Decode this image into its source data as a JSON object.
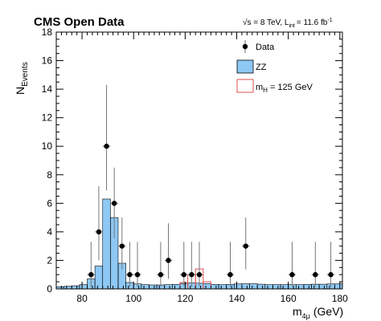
{
  "chart_data": {
    "type": "histogram",
    "title": "CMS Open Data",
    "energy_label": "√s = 8 TeV, L",
    "energy_sub": "int",
    "energy_rest": "= 11.6 fb",
    "energy_sup": "-1",
    "xlabel": "m",
    "xlabel_sub": "4μ",
    "xlabel_unit": "(GeV)",
    "ylabel": "N",
    "ylabel_sub": "Events",
    "xlim": [
      70,
      181
    ],
    "ylim": [
      0,
      18
    ],
    "x_ticks": [
      80,
      100,
      120,
      140,
      160,
      180
    ],
    "y_ticks": [
      0,
      2,
      4,
      6,
      8,
      10,
      12,
      14,
      16,
      18
    ],
    "colors": {
      "zz_fill": "#8ec8f4",
      "signal_line": "#e05050",
      "data": "#000000"
    },
    "legend": {
      "data": "Data",
      "zz": "ZZ",
      "signal": "m",
      "signal_sub": "H",
      "signal_rest": "= 125 GeV"
    },
    "bin_width": 3,
    "zz_series": {
      "name": "ZZ",
      "bin_start": [
        70,
        73,
        76,
        79,
        82,
        85,
        88,
        91,
        94,
        97,
        100,
        103,
        106,
        109,
        112,
        115,
        118,
        121,
        124,
        127,
        130,
        133,
        136,
        139,
        142,
        145,
        148,
        151,
        154,
        157,
        160,
        163,
        166,
        169,
        172,
        175,
        178
      ],
      "values": [
        0.15,
        0.18,
        0.22,
        0.3,
        0.7,
        1.6,
        6.3,
        5.0,
        1.8,
        0.45,
        0.35,
        0.3,
        0.28,
        0.28,
        0.3,
        0.32,
        0.38,
        0.42,
        0.4,
        0.38,
        0.32,
        0.3,
        0.32,
        0.35,
        0.36,
        0.36,
        0.33,
        0.3,
        0.3,
        0.3,
        0.3,
        0.3,
        0.32,
        0.33,
        0.33,
        0.35,
        0.35
      ]
    },
    "signal_series": {
      "name": "m_H = 125 GeV",
      "bin_start": [
        118,
        121,
        124,
        127
      ],
      "values": [
        0.45,
        1.0,
        1.4,
        0.5
      ]
    },
    "data_series": {
      "name": "Data",
      "x": [
        83.5,
        86.5,
        89.5,
        92.5,
        95.5,
        98.5,
        101.5,
        110.5,
        113.5,
        119.5,
        122.5,
        125.5,
        137.5,
        143.5,
        161.5,
        170.5,
        176.5
      ],
      "y": [
        1,
        4,
        10,
        6,
        3,
        1,
        1,
        1,
        2,
        1,
        1,
        1,
        1,
        3,
        1,
        1,
        1
      ],
      "err_up": [
        2.3,
        3.2,
        4.3,
        2.5,
        2.0,
        2.3,
        2.3,
        2.3,
        2.6,
        2.3,
        2.3,
        2.3,
        2.3,
        2.0,
        2.3,
        2.3,
        2.3
      ],
      "err_down": [
        0.83,
        2.0,
        3.1,
        2.45,
        1.63,
        0.83,
        0.83,
        0.83,
        1.29,
        0.83,
        0.83,
        0.83,
        0.83,
        1.63,
        0.83,
        0.83,
        0.83
      ]
    }
  }
}
